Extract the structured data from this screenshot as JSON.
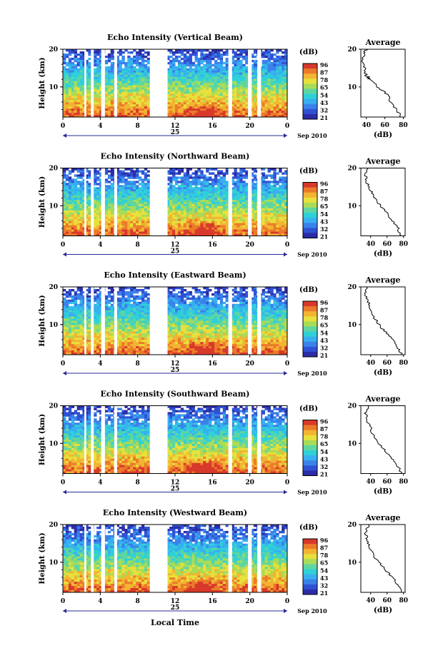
{
  "chart_data": [
    {
      "type": "heatmap",
      "title": "Echo Intensity (Vertical Beam)",
      "ylabel": "Height (km)",
      "yticks": [
        "10",
        "20"
      ],
      "ylim": [
        2,
        20
      ],
      "xticks": [
        "0",
        "4",
        "8",
        "12",
        "16",
        "20",
        "0"
      ],
      "day_label": "25",
      "date_label": "Sep 2010",
      "colorbar": {
        "unit": "(dB)",
        "ticks": [
          "96",
          "87",
          "78",
          "65",
          "54",
          "43",
          "32",
          "21"
        ]
      },
      "profile": {
        "title": "Average",
        "xlabel": "(dB)",
        "xticks": [
          "40",
          "60",
          "80"
        ],
        "xlim": [
          34,
          82
        ],
        "yticks": [
          "10",
          "20"
        ],
        "heights": [
          2,
          4,
          6,
          8,
          10,
          12,
          13,
          15,
          17,
          19,
          20
        ],
        "values": [
          78,
          73,
          66,
          63,
          52,
          44,
          40,
          38,
          35,
          38,
          40
        ]
      }
    },
    {
      "type": "heatmap",
      "title": "Echo Intensity (Northward Beam)",
      "ylabel": "Height (km)",
      "yticks": [
        "10",
        "20"
      ],
      "ylim": [
        2,
        20
      ],
      "xticks": [
        "0",
        "4",
        "8",
        "12",
        "16",
        "20",
        "0"
      ],
      "day_label": "25",
      "date_label": "Sep 2010",
      "colorbar": {
        "unit": "(dB)",
        "ticks": [
          "96",
          "87",
          "78",
          "65",
          "54",
          "43",
          "32",
          "21"
        ]
      },
      "profile": {
        "title": "Average",
        "xlabel": "(dB)",
        "xticks": [
          "40",
          "60",
          "80"
        ],
        "xlim": [
          28,
          82
        ],
        "yticks": [
          "10",
          "20"
        ],
        "heights": [
          2,
          4,
          6,
          8,
          10,
          12,
          14,
          16,
          18,
          20
        ],
        "values": [
          78,
          73,
          67,
          60,
          52,
          45,
          40,
          36,
          34,
          37
        ]
      }
    },
    {
      "type": "heatmap",
      "title": "Echo Intensity (Eastward Beam)",
      "ylabel": "Height (km)",
      "yticks": [
        "10",
        "20"
      ],
      "ylim": [
        2,
        20
      ],
      "xticks": [
        "0",
        "4",
        "8",
        "12",
        "16",
        "20",
        "0"
      ],
      "day_label": "25",
      "date_label": "Sep 2010",
      "colorbar": {
        "unit": "(dB)",
        "ticks": [
          "96",
          "87",
          "78",
          "65",
          "54",
          "43",
          "32",
          "21"
        ]
      },
      "profile": {
        "title": "Average",
        "xlabel": "(dB)",
        "xticks": [
          "40",
          "60",
          "80"
        ],
        "xlim": [
          28,
          82
        ],
        "yticks": [
          "10",
          "20"
        ],
        "heights": [
          2,
          4,
          6,
          8,
          10,
          12,
          14,
          16,
          18,
          20
        ],
        "values": [
          78,
          72,
          67,
          58,
          50,
          44,
          39,
          37,
          33,
          35
        ]
      }
    },
    {
      "type": "heatmap",
      "title": "Echo Intensity (Southward Beam)",
      "ylabel": "Height (km)",
      "yticks": [
        "10",
        "20"
      ],
      "ylim": [
        2,
        20
      ],
      "xticks": [
        "0",
        "4",
        "8",
        "12",
        "16",
        "20",
        "0"
      ],
      "day_label": "25",
      "date_label": "Sep 2010",
      "colorbar": {
        "unit": "(dB)",
        "ticks": [
          "96",
          "87",
          "78",
          "65",
          "54",
          "43",
          "32",
          "21"
        ]
      },
      "profile": {
        "title": "Average",
        "xlabel": "(dB)",
        "xticks": [
          "40",
          "60",
          "80"
        ],
        "xlim": [
          28,
          82
        ],
        "yticks": [
          "10",
          "20"
        ],
        "heights": [
          2,
          4,
          6,
          8,
          10,
          12,
          14,
          16,
          18,
          20
        ],
        "values": [
          78,
          73,
          66,
          58,
          50,
          44,
          40,
          36,
          34,
          38
        ]
      }
    },
    {
      "type": "heatmap",
      "title": "Echo Intensity (Westward Beam)",
      "ylabel": "Height (km)",
      "yticks": [
        "10",
        "20"
      ],
      "ylim": [
        2,
        20
      ],
      "xticks": [
        "0",
        "4",
        "8",
        "12",
        "16",
        "20",
        "0"
      ],
      "day_label": "25",
      "date_label": "Sep 2010",
      "colorbar": {
        "unit": "(dB)",
        "ticks": [
          "96",
          "87",
          "78",
          "65",
          "54",
          "43",
          "32",
          "21"
        ]
      },
      "profile": {
        "title": "Average",
        "xlabel": "(dB)",
        "xticks": [
          "40",
          "60",
          "80"
        ],
        "xlim": [
          28,
          82
        ],
        "yticks": [
          "10",
          "20"
        ],
        "heights": [
          2,
          4,
          6,
          8,
          10,
          12,
          14,
          16,
          18,
          20
        ],
        "values": [
          78,
          73,
          66,
          58,
          50,
          43,
          39,
          36,
          34,
          37
        ]
      }
    }
  ],
  "shared": {
    "xlabel": "Local Time",
    "data_gaps_local_time": [
      [
        2.3,
        2.5
      ],
      [
        3.0,
        3.3
      ],
      [
        4.1,
        4.5
      ],
      [
        5.5,
        5.8
      ],
      [
        9.3,
        11.2
      ],
      [
        17.7,
        18.1
      ],
      [
        19.8,
        20.2
      ],
      [
        20.8,
        21.2
      ]
    ]
  }
}
